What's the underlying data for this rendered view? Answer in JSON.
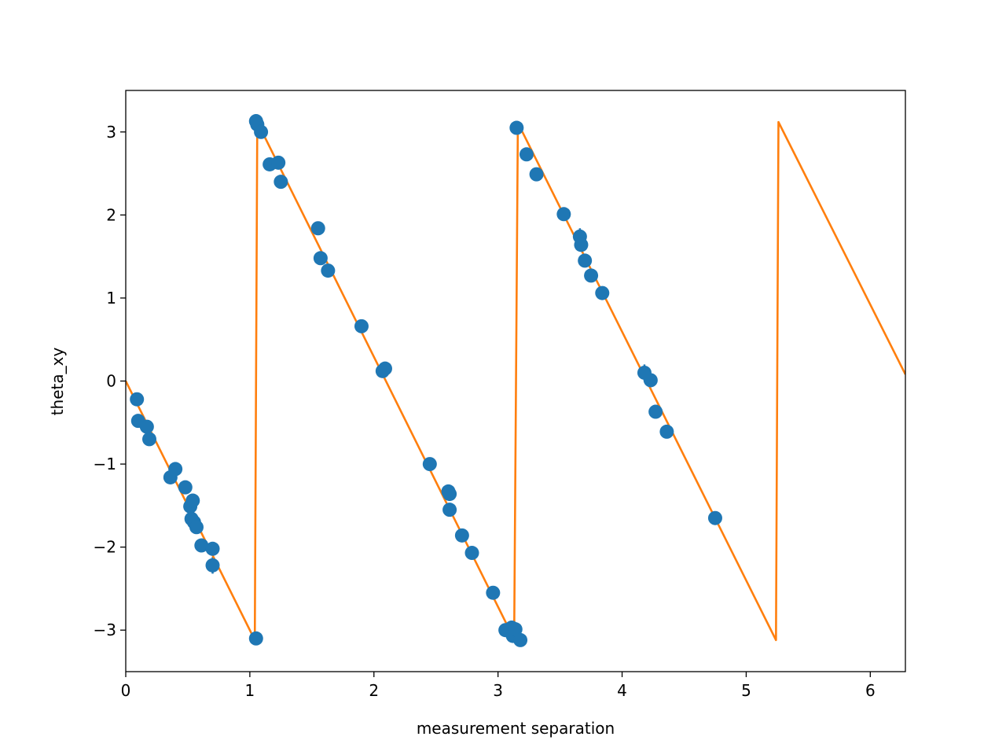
{
  "chart_data": {
    "type": "scatter",
    "xlabel": "measurement separation",
    "ylabel": "theta_xy",
    "xlim": [
      0,
      6.283
    ],
    "ylim": [
      -3.5,
      3.5
    ],
    "x_ticks": [
      0,
      1,
      2,
      3,
      4,
      5,
      6
    ],
    "y_ticks": [
      -3,
      -2,
      -1,
      0,
      1,
      2,
      3
    ],
    "x_tick_labels": [
      "0",
      "1",
      "2",
      "3",
      "4",
      "5",
      "6"
    ],
    "y_tick_labels": [
      "−3",
      "−2",
      "−1",
      "0",
      "1",
      "2",
      "3"
    ],
    "grid": false,
    "colors": {
      "points": "#1f77b4",
      "model": "#ff7f0e"
    },
    "series": [
      {
        "kind": "points_with_errorbars",
        "points": [
          [
            0.09,
            -0.22,
            0.03
          ],
          [
            0.1,
            -0.48,
            0.03
          ],
          [
            0.17,
            -0.55,
            0.03
          ],
          [
            0.19,
            -0.7,
            0.03
          ],
          [
            0.36,
            -1.16,
            0.03
          ],
          [
            0.4,
            -1.06,
            0.03
          ],
          [
            0.48,
            -1.28,
            0.03
          ],
          [
            0.52,
            -1.51,
            0.04
          ],
          [
            0.53,
            -1.66,
            0.04
          ],
          [
            0.54,
            -1.44,
            0.03
          ],
          [
            0.55,
            -1.7,
            0.04
          ],
          [
            0.57,
            -1.76,
            0.04
          ],
          [
            0.61,
            -1.98,
            0.05
          ],
          [
            0.7,
            -2.02,
            0.04
          ],
          [
            0.7,
            -2.22,
            0.1
          ],
          [
            1.05,
            -3.1,
            0.03
          ],
          [
            1.05,
            3.13,
            0.03
          ],
          [
            1.06,
            3.09,
            0.03
          ],
          [
            1.09,
            3.0,
            0.03
          ],
          [
            1.16,
            2.61,
            0.03
          ],
          [
            1.23,
            2.63,
            0.03
          ],
          [
            1.25,
            2.4,
            0.03
          ],
          [
            1.55,
            1.84,
            0.03
          ],
          [
            1.57,
            1.48,
            0.03
          ],
          [
            1.63,
            1.33,
            0.03
          ],
          [
            1.9,
            0.66,
            0.03
          ],
          [
            2.07,
            0.12,
            0.03
          ],
          [
            2.09,
            0.15,
            0.03
          ],
          [
            2.45,
            -1.0,
            0.03
          ],
          [
            2.6,
            -1.33,
            0.05
          ],
          [
            2.61,
            -1.36,
            0.05
          ],
          [
            2.61,
            -1.55,
            0.03
          ],
          [
            2.71,
            -1.86,
            0.03
          ],
          [
            2.79,
            -2.07,
            0.03
          ],
          [
            2.96,
            -2.55,
            0.03
          ],
          [
            3.06,
            -3.0,
            0.03
          ],
          [
            3.11,
            -2.97,
            0.03
          ],
          [
            3.12,
            -3.07,
            0.03
          ],
          [
            3.14,
            -2.99,
            0.03
          ],
          [
            3.18,
            -3.12,
            0.03
          ],
          [
            3.15,
            3.05,
            0.03
          ],
          [
            3.23,
            2.73,
            0.08
          ],
          [
            3.31,
            2.49,
            0.03
          ],
          [
            3.53,
            2.01,
            0.03
          ],
          [
            3.66,
            1.74,
            0.1
          ],
          [
            3.67,
            1.64,
            0.03
          ],
          [
            3.7,
            1.45,
            0.03
          ],
          [
            3.75,
            1.27,
            0.03
          ],
          [
            3.84,
            1.06,
            0.07
          ],
          [
            4.18,
            0.1,
            0.1
          ],
          [
            4.23,
            0.01,
            0.03
          ],
          [
            4.27,
            -0.37,
            0.03
          ],
          [
            4.36,
            -0.61,
            0.03
          ],
          [
            4.75,
            -1.65,
            0.03
          ]
        ]
      },
      {
        "kind": "model_line",
        "points": [
          [
            0,
            0
          ],
          [
            1.04,
            -3.12
          ],
          [
            1.06,
            3.12
          ],
          [
            3.13,
            -3.11
          ],
          [
            3.16,
            3.11
          ],
          [
            5.24,
            -3.12
          ],
          [
            5.26,
            3.12
          ],
          [
            6.283,
            0.08
          ]
        ]
      }
    ]
  }
}
